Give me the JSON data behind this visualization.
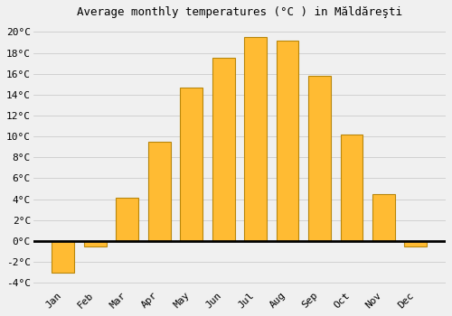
{
  "title": "Average monthly temperatures (°C ) in Măldăreşti",
  "months": [
    "Jan",
    "Feb",
    "Mar",
    "Apr",
    "May",
    "Jun",
    "Jul",
    "Aug",
    "Sep",
    "Oct",
    "Nov",
    "Dec"
  ],
  "values": [
    -3.0,
    -0.5,
    4.1,
    9.5,
    14.7,
    17.5,
    19.5,
    19.2,
    15.8,
    10.2,
    4.5,
    -0.5
  ],
  "bar_color": "#FFBB33",
  "bar_edge_color": "#B8860B",
  "background_color": "#F0F0F0",
  "zero_line_color": "#000000",
  "grid_color": "#CCCCCC",
  "ylim": [
    -4.5,
    21.0
  ],
  "yticks": [
    -4,
    -2,
    0,
    2,
    4,
    6,
    8,
    10,
    12,
    14,
    16,
    18,
    20
  ],
  "title_fontsize": 9,
  "tick_fontsize": 8,
  "bar_width": 0.7
}
